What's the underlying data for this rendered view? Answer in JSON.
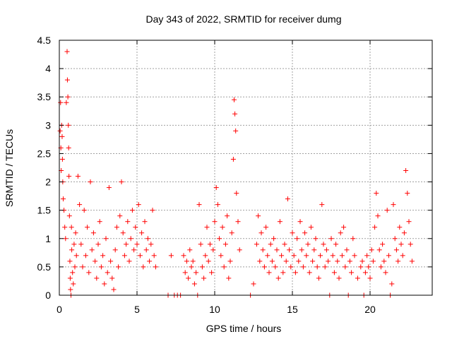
{
  "chart_data": {
    "type": "scatter",
    "title": "Day 343 of 2022, SRMTID for receiver dumg",
    "xlabel": "GPS time / hours",
    "ylabel": "SRMTID / TECUs",
    "xlim": [
      0,
      24
    ],
    "ylim": [
      0,
      4.5
    ],
    "xticks": [
      0,
      5,
      10,
      15,
      20
    ],
    "xtick_labels": [
      "0",
      "5",
      "10",
      "15",
      "20"
    ],
    "yticks": [
      0,
      0.5,
      1,
      1.5,
      2,
      2.5,
      3,
      3.5,
      4,
      4.5
    ],
    "ytick_labels": [
      "0",
      "0.5",
      "1",
      "1.5",
      "2",
      "2.5",
      "3",
      "3.5",
      "4",
      "4.5"
    ],
    "grid": true,
    "marker": "+",
    "series": [
      {
        "name": "SRMTID",
        "color": "#ff0000",
        "x": [
          0.05,
          0.08,
          0.1,
          0.12,
          0.15,
          0.18,
          0.2,
          0.22,
          0.25,
          0.3,
          0.35,
          0.4,
          0.45,
          0.5,
          0.52,
          0.55,
          0.58,
          0.6,
          0.62,
          0.65,
          0.68,
          0.7,
          0.72,
          0.75,
          0.78,
          0.8,
          0.85,
          0.9,
          0.95,
          1.0,
          1.05,
          1.1,
          1.2,
          1.3,
          1.4,
          1.5,
          1.6,
          1.7,
          1.8,
          1.9,
          2.0,
          2.1,
          2.2,
          2.3,
          2.4,
          2.5,
          2.6,
          2.7,
          2.8,
          2.9,
          3.0,
          3.1,
          3.2,
          3.3,
          3.4,
          3.5,
          3.6,
          3.7,
          3.8,
          3.9,
          4.0,
          4.1,
          4.2,
          4.3,
          4.4,
          4.5,
          4.6,
          4.7,
          4.8,
          4.9,
          5.0,
          5.1,
          5.2,
          5.3,
          5.4,
          5.5,
          5.6,
          5.7,
          5.8,
          5.9,
          6.0,
          6.1,
          6.2,
          7.0,
          7.2,
          7.4,
          7.6,
          7.8,
          8.0,
          8.1,
          8.2,
          8.3,
          8.4,
          8.5,
          8.6,
          8.7,
          8.8,
          8.9,
          9.0,
          9.1,
          9.2,
          9.3,
          9.4,
          9.5,
          9.6,
          9.7,
          9.8,
          9.9,
          10.0,
          10.1,
          10.2,
          10.3,
          10.4,
          10.5,
          10.6,
          10.7,
          10.8,
          10.9,
          11.0,
          11.1,
          11.2,
          11.25,
          11.3,
          11.35,
          11.4,
          11.5,
          11.6,
          12.3,
          12.5,
          12.7,
          12.8,
          12.9,
          13.0,
          13.1,
          13.2,
          13.3,
          13.4,
          13.5,
          13.6,
          13.7,
          13.8,
          13.9,
          14.0,
          14.1,
          14.2,
          14.3,
          14.4,
          14.5,
          14.6,
          14.7,
          14.8,
          14.9,
          15.0,
          15.1,
          15.2,
          15.3,
          15.4,
          15.5,
          15.6,
          15.7,
          15.8,
          15.9,
          16.0,
          16.1,
          16.2,
          16.3,
          16.4,
          16.5,
          16.6,
          16.7,
          16.8,
          16.9,
          17.0,
          17.1,
          17.2,
          17.3,
          17.4,
          17.5,
          17.6,
          17.7,
          17.8,
          17.9,
          18.0,
          18.1,
          18.2,
          18.3,
          18.4,
          18.5,
          18.6,
          18.7,
          18.8,
          18.9,
          19.0,
          19.2,
          19.4,
          19.5,
          19.6,
          19.7,
          19.8,
          19.9,
          20.0,
          20.1,
          20.2,
          20.3,
          20.4,
          20.5,
          20.6,
          20.7,
          20.8,
          20.9,
          21.0,
          21.1,
          21.2,
          21.3,
          21.4,
          21.5,
          21.6,
          21.7,
          21.8,
          21.9,
          22.0,
          22.1,
          22.2,
          22.3,
          22.4,
          22.5,
          22.6,
          22.7
        ],
        "y": [
          2.9,
          3.4,
          2.6,
          2.2,
          3.0,
          2.8,
          2.4,
          2.0,
          1.7,
          1.5,
          1.2,
          1.0,
          3.4,
          4.3,
          3.8,
          3.5,
          3.0,
          2.6,
          2.1,
          1.4,
          0.6,
          0.3,
          0.1,
          0.0,
          1.2,
          0.8,
          0.4,
          0.2,
          0.9,
          0.5,
          1.1,
          0.7,
          2.1,
          1.6,
          0.9,
          0.5,
          1.5,
          0.7,
          1.2,
          0.4,
          2.0,
          0.8,
          1.1,
          0.6,
          0.3,
          0.9,
          1.3,
          0.5,
          0.7,
          0.2,
          1.0,
          0.4,
          1.9,
          0.6,
          0.3,
          0.1,
          0.8,
          1.2,
          0.5,
          1.4,
          2.0,
          1.1,
          0.7,
          0.9,
          1.3,
          0.6,
          1.0,
          1.5,
          0.8,
          1.2,
          0.9,
          1.6,
          0.7,
          1.1,
          0.5,
          1.3,
          0.8,
          1.0,
          0.6,
          0.9,
          1.5,
          0.7,
          0.5,
          0.0,
          0.7,
          0.0,
          0.0,
          0.0,
          0.7,
          0.4,
          0.6,
          0.3,
          0.8,
          0.5,
          0.6,
          0.2,
          0.4,
          0.0,
          1.6,
          0.9,
          0.5,
          0.3,
          0.7,
          1.2,
          0.6,
          0.9,
          0.4,
          0.8,
          1.3,
          1.9,
          1.6,
          1.0,
          0.7,
          1.2,
          0.5,
          0.9,
          1.4,
          0.3,
          0.6,
          1.1,
          2.4,
          3.45,
          3.2,
          2.9,
          1.8,
          1.3,
          0.8,
          0.0,
          0.2,
          0.9,
          1.4,
          0.6,
          1.1,
          0.8,
          0.5,
          1.2,
          0.7,
          0.4,
          0.9,
          0.6,
          1.0,
          0.5,
          0.8,
          0.3,
          1.3,
          0.7,
          0.4,
          0.9,
          0.6,
          1.7,
          0.8,
          0.5,
          1.1,
          0.7,
          0.4,
          1.0,
          0.6,
          1.3,
          0.8,
          0.5,
          1.1,
          0.7,
          0.9,
          0.4,
          1.2,
          0.6,
          0.8,
          1.0,
          0.5,
          0.3,
          0.7,
          1.6,
          0.9,
          0.5,
          0.8,
          0.6,
          0.0,
          1.0,
          0.7,
          0.4,
          0.9,
          0.6,
          0.3,
          1.1,
          0.7,
          1.2,
          0.5,
          0.8,
          0.0,
          0.6,
          0.4,
          1.0,
          0.7,
          0.3,
          0.5,
          0.6,
          0.0,
          0.4,
          0.7,
          0.5,
          0.3,
          0.8,
          0.6,
          1.2,
          1.8,
          1.4,
          0.8,
          0.5,
          0.9,
          0.6,
          0.4,
          1.5,
          0.7,
          0.0,
          0.2,
          1.6,
          1.0,
          0.8,
          0.6,
          1.2,
          0.9,
          0.7,
          1.1,
          2.2,
          1.8,
          1.3,
          0.9,
          0.6
        ]
      }
    ]
  }
}
